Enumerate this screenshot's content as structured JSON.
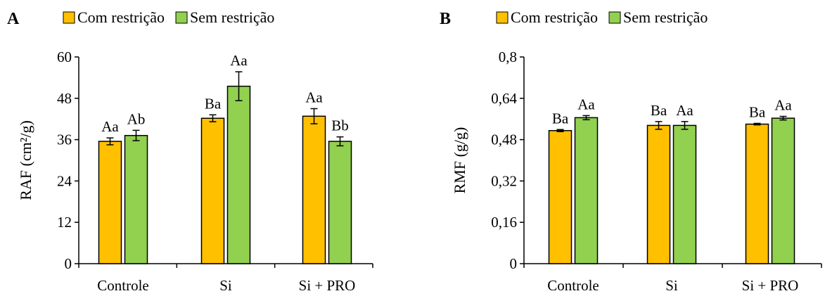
{
  "chart_data": [
    {
      "type": "bar",
      "panel": "A",
      "categories": [
        "Controle",
        "Si",
        "Si + PRO"
      ],
      "ylabel": "RAF (cm²/g)",
      "ylim": [
        0,
        60
      ],
      "yticks": [
        "0",
        "12",
        "24",
        "36",
        "48",
        "60"
      ],
      "grid": false,
      "legend_position": "top",
      "series": [
        {
          "name": "Com restrição",
          "color": "#FFC000",
          "values": [
            35.5,
            42.2,
            42.8
          ],
          "errors": [
            1.0,
            1.0,
            2.2
          ],
          "labels": [
            "Aa",
            "Ba",
            "Aa"
          ]
        },
        {
          "name": "Sem restrição",
          "color": "#92D050",
          "values": [
            37.2,
            51.5,
            35.5
          ],
          "errors": [
            1.5,
            4.2,
            1.3
          ],
          "labels": [
            "Ab",
            "Aa",
            "Bb"
          ]
        }
      ]
    },
    {
      "type": "bar",
      "panel": "B",
      "categories": [
        "Controle",
        "Si",
        "Si + PRO"
      ],
      "ylabel": "RMF  (g/g)",
      "ylim": [
        0,
        0.8
      ],
      "yticks": [
        "0",
        "0,16",
        "0,32",
        "0,48",
        "0,64",
        "0,8"
      ],
      "grid": false,
      "legend_position": "top",
      "series": [
        {
          "name": "Com restrição",
          "color": "#FFC000",
          "values": [
            0.515,
            0.535,
            0.54
          ],
          "errors": [
            0.004,
            0.015,
            0.003
          ],
          "labels": [
            "Ba",
            "Ba",
            "Ba"
          ]
        },
        {
          "name": "Sem restrição",
          "color": "#92D050",
          "values": [
            0.565,
            0.535,
            0.563
          ],
          "errors": [
            0.008,
            0.015,
            0.007
          ],
          "labels": [
            "Aa",
            "Aa",
            "Aa"
          ]
        }
      ]
    }
  ]
}
